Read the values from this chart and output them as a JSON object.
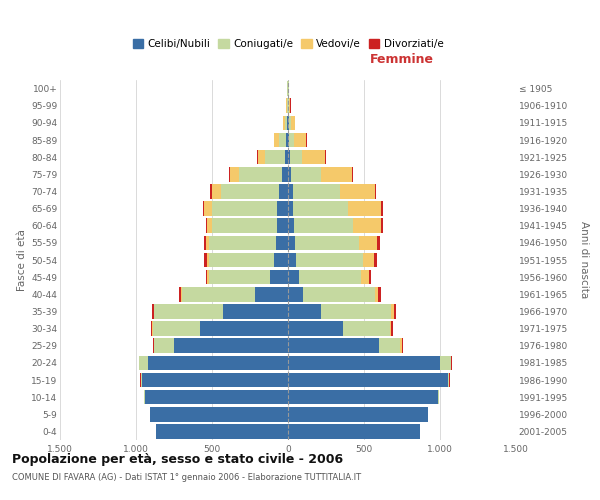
{
  "age_groups": [
    "0-4",
    "5-9",
    "10-14",
    "15-19",
    "20-24",
    "25-29",
    "30-34",
    "35-39",
    "40-44",
    "45-49",
    "50-54",
    "55-59",
    "60-64",
    "65-69",
    "70-74",
    "75-79",
    "80-84",
    "85-89",
    "90-94",
    "95-99",
    "100+"
  ],
  "birth_years": [
    "2001-2005",
    "1996-2000",
    "1991-1995",
    "1986-1990",
    "1981-1985",
    "1976-1980",
    "1971-1975",
    "1966-1970",
    "1961-1965",
    "1956-1960",
    "1951-1955",
    "1946-1950",
    "1941-1945",
    "1936-1940",
    "1931-1935",
    "1926-1930",
    "1921-1925",
    "1916-1920",
    "1911-1915",
    "1906-1910",
    "≤ 1905"
  ],
  "males": {
    "celibe": [
      870,
      910,
      940,
      960,
      920,
      750,
      580,
      430,
      220,
      120,
      90,
      80,
      70,
      70,
      60,
      40,
      20,
      10,
      5,
      3,
      2
    ],
    "coniugato": [
      0,
      0,
      5,
      10,
      60,
      130,
      310,
      450,
      480,
      400,
      430,
      440,
      430,
      430,
      380,
      280,
      130,
      50,
      15,
      5,
      2
    ],
    "vedovo": [
      0,
      0,
      0,
      0,
      1,
      2,
      2,
      3,
      5,
      10,
      15,
      20,
      30,
      50,
      60,
      60,
      50,
      30,
      10,
      2,
      0
    ],
    "divorziato": [
      0,
      0,
      0,
      1,
      2,
      5,
      8,
      12,
      15,
      12,
      15,
      12,
      10,
      10,
      10,
      8,
      5,
      3,
      1,
      0,
      0
    ]
  },
  "females": {
    "nubile": [
      870,
      920,
      990,
      1050,
      1000,
      600,
      360,
      220,
      100,
      70,
      55,
      45,
      40,
      35,
      30,
      20,
      12,
      8,
      5,
      3,
      2
    ],
    "coniugata": [
      0,
      0,
      5,
      10,
      70,
      140,
      310,
      460,
      470,
      410,
      440,
      420,
      390,
      360,
      310,
      200,
      80,
      30,
      15,
      5,
      2
    ],
    "vedova": [
      0,
      0,
      0,
      2,
      5,
      8,
      10,
      15,
      25,
      50,
      70,
      120,
      180,
      220,
      230,
      200,
      150,
      80,
      25,
      8,
      3
    ],
    "divorziata": [
      0,
      0,
      0,
      1,
      3,
      8,
      12,
      18,
      20,
      18,
      20,
      18,
      15,
      12,
      12,
      10,
      8,
      5,
      2,
      1,
      0
    ]
  },
  "colors": {
    "celibe": "#3a6ea5",
    "coniugato": "#c5d9a0",
    "vedovo": "#f5c96a",
    "divorziato": "#cc2222"
  },
  "title1": "Popolazione per età, sesso e stato civile - 2006",
  "title2": "COMUNE DI FAVARA (AG) - Dati ISTAT 1° gennaio 2006 - Elaborazione TUTTITALIA.IT",
  "xlabel_right": "Femmine",
  "ylabel_left": "Fasce di età",
  "ylabel_right": "Anni di nascita",
  "xlim": 1500,
  "legend_labels": [
    "Celibi/Nubili",
    "Coniugati/e",
    "Vedovi/e",
    "Divorziati/e"
  ]
}
